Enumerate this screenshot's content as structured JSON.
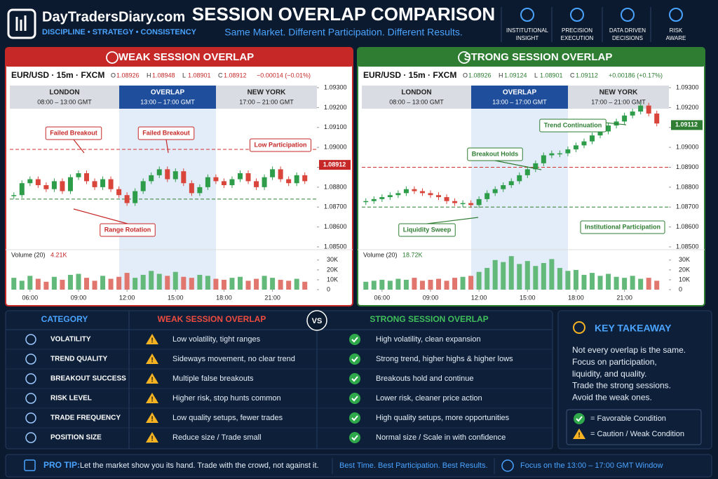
{
  "header": {
    "brand": "DayTradersDiary.com",
    "tagline": "DISCIPLINE • STRATEGY • CONSISTENCY",
    "title": "SESSION OVERLAP COMPARISON",
    "subtitle": "Same Market. Different Participation. Different Results.",
    "features": [
      [
        "INSTITUTIONAL",
        "INSIGHT"
      ],
      [
        "PRECISION",
        "EXECUTION"
      ],
      [
        "DATA DRIVEN",
        "DECISIONS"
      ],
      [
        "RISK",
        "AWARE"
      ]
    ]
  },
  "chart_data": [
    {
      "type": "candlestick",
      "title": "WEAK SESSION OVERLAP",
      "symbol": "EUR/USD · 15m · FXCM",
      "ohlc": [
        [
          "O",
          "1.08926"
        ],
        [
          "H",
          "1.08948"
        ],
        [
          "L",
          "1.08901"
        ],
        [
          "C",
          "1.08912"
        ]
      ],
      "change": "−0.00014 (−0.01%)",
      "color": "#c62828",
      "sessions": [
        [
          "LONDON",
          "08:00 – 13:00 GMT"
        ],
        [
          "OVERLAP",
          "13:00 – 17:00 GMT"
        ],
        [
          "NEW YORK",
          "17:00 – 21:00 GMT"
        ]
      ],
      "ylim": [
        1.085,
        1.093
      ],
      "yticks": [
        {
          "value": 1.085,
          "label": "1.08500"
        },
        {
          "value": 1.086,
          "label": "1.08600"
        },
        {
          "value": 1.087,
          "label": "1.08700"
        },
        {
          "value": 1.088,
          "label": "1.08800"
        },
        {
          "value": 1.089,
          "label": "1.08900"
        },
        {
          "value": 1.09,
          "label": "1.09000"
        },
        {
          "value": 1.091,
          "label": "1.09100"
        },
        {
          "value": 1.092,
          "label": "1.09200"
        },
        {
          "value": 1.093,
          "label": "1.09300"
        }
      ],
      "xlim": [
        4.75,
        23.75
      ],
      "xticks": [
        {
          "value": 6,
          "label": "06:00"
        },
        {
          "value": 9,
          "label": "09:00"
        },
        {
          "value": 12,
          "label": "12:00"
        },
        {
          "value": 15,
          "label": "15:00"
        },
        {
          "value": 18,
          "label": "18:00"
        },
        {
          "value": 21,
          "label": "21:00"
        }
      ],
      "x": [
        5,
        5.5,
        6,
        6.5,
        7,
        7.5,
        8,
        8.5,
        9,
        9.5,
        10,
        10.5,
        11,
        11.5,
        12,
        12.5,
        13,
        13.5,
        14,
        14.5,
        15,
        15.5,
        16,
        16.5,
        17,
        17.5,
        18,
        18.5,
        19,
        19.5,
        20,
        20.5,
        21,
        21.5,
        22,
        22.5,
        23
      ],
      "closes": [
        1.0876,
        1.0882,
        1.0884,
        1.0881,
        1.0879,
        1.0883,
        1.0878,
        1.0885,
        1.0887,
        1.0883,
        1.088,
        1.0884,
        1.0879,
        1.0876,
        1.0872,
        1.0878,
        1.0883,
        1.0886,
        1.0889,
        1.0884,
        1.0888,
        1.0882,
        1.0877,
        1.088,
        1.0885,
        1.0883,
        1.0881,
        1.0884,
        1.0887,
        1.0883,
        1.088,
        1.0885,
        1.0889,
        1.0884,
        1.0882,
        1.0886,
        1.0883
      ],
      "levels": [
        1.0899,
        1.0874
      ],
      "last": 1.08912,
      "annotations": [
        "Failed Breakout",
        "Failed Breakout",
        "Low Participation",
        "Range Rotation"
      ],
      "volume_label": "Volume (20)",
      "volume_total": "4.21K",
      "vlim": [
        0,
        32000
      ],
      "vticks": [
        0,
        {
          "value": 10000,
          "label": "10K"
        },
        {
          "value": 20000,
          "label": "20K"
        },
        {
          "value": 30000,
          "label": "30K"
        }
      ],
      "volumes": [
        12000,
        9000,
        14000,
        11000,
        8000,
        13000,
        10000,
        15000,
        16000,
        12000,
        9000,
        14000,
        11000,
        13000,
        17000,
        12000,
        15000,
        19000,
        16000,
        14000,
        18000,
        13000,
        12000,
        15000,
        14000,
        11000,
        10000,
        12000,
        13000,
        9000,
        11000,
        14000,
        12000,
        10000,
        9000,
        11000,
        8000
      ]
    },
    {
      "type": "candlestick",
      "title": "STRONG SESSION OVERLAP",
      "symbol": "EUR/USD · 15m · FXCM",
      "ohlc": [
        [
          "O",
          "1.08926"
        ],
        [
          "H",
          "1.09124"
        ],
        [
          "L",
          "1.08901"
        ],
        [
          "C",
          "1.09112"
        ]
      ],
      "change": "+0.00186 (+0.17%)",
      "color": "#2e7d32",
      "sessions": [
        [
          "LONDON",
          "08:00 – 13:00 GMT"
        ],
        [
          "OVERLAP",
          "13:00 – 17:00 GMT"
        ],
        [
          "NEW YORK",
          "17:00 – 21:00 GMT"
        ]
      ],
      "ylim": [
        1.085,
        1.093
      ],
      "yticks": [
        {
          "value": 1.085,
          "label": "1.08500"
        },
        {
          "value": 1.086,
          "label": "1.08600"
        },
        {
          "value": 1.087,
          "label": "1.08700"
        },
        {
          "value": 1.088,
          "label": "1.08800"
        },
        {
          "value": 1.089,
          "label": "1.08900"
        },
        {
          "value": 1.09,
          "label": "1.09000"
        },
        {
          "value": 1.091,
          "label": "1.09100"
        },
        {
          "value": 1.092,
          "label": "1.09200"
        },
        {
          "value": 1.093,
          "label": "1.09300"
        }
      ],
      "xlim": [
        4.75,
        23.75
      ],
      "xticks": [
        {
          "value": 6,
          "label": "06:00"
        },
        {
          "value": 9,
          "label": "09:00"
        },
        {
          "value": 12,
          "label": "12:00"
        },
        {
          "value": 15,
          "label": "15:00"
        },
        {
          "value": 18,
          "label": "18:00"
        },
        {
          "value": 21,
          "label": "21:00"
        }
      ],
      "x": [
        5,
        5.5,
        6,
        6.5,
        7,
        7.5,
        8,
        8.5,
        9,
        9.5,
        10,
        10.5,
        11,
        11.5,
        12,
        12.5,
        13,
        13.5,
        14,
        14.5,
        15,
        15.5,
        16,
        16.5,
        17,
        17.5,
        18,
        18.5,
        19,
        19.5,
        20,
        20.5,
        21,
        21.5,
        22,
        22.5,
        23
      ],
      "closes": [
        1.0873,
        1.0874,
        1.0875,
        1.0876,
        1.0877,
        1.0879,
        1.0878,
        1.0877,
        1.0876,
        1.0875,
        1.0873,
        1.0872,
        1.0872,
        1.0871,
        1.0874,
        1.0877,
        1.0879,
        1.0881,
        1.0883,
        1.0886,
        1.0889,
        1.0892,
        1.0896,
        1.0897,
        1.0897,
        1.0899,
        1.0901,
        1.0903,
        1.0906,
        1.0908,
        1.0911,
        1.0913,
        1.0916,
        1.0918,
        1.0921,
        1.0917,
        1.0912
      ],
      "levels": [
        1.089,
        1.087
      ],
      "last": 1.09112,
      "annotations": [
        "Trend Continuation",
        "Breakout Holds",
        "Liquidity Sweep",
        "Institutional Participation"
      ],
      "volume_label": "Volume (20)",
      "volume_total": "18.72K",
      "vlim": [
        0,
        32000
      ],
      "vticks": [
        0,
        {
          "value": 10000,
          "label": "10K"
        },
        {
          "value": 20000,
          "label": "20K"
        },
        {
          "value": 30000,
          "label": "30K"
        }
      ],
      "volumes": [
        8000,
        9000,
        10000,
        9000,
        11000,
        10000,
        12000,
        9000,
        10000,
        11000,
        9000,
        12000,
        13000,
        14000,
        18000,
        22000,
        30000,
        28000,
        34000,
        26000,
        29000,
        24000,
        27000,
        31000,
        22000,
        19000,
        20000,
        15000,
        17000,
        14000,
        16000,
        13000,
        12000,
        14000,
        11000,
        12000,
        9000
      ]
    }
  ],
  "table": {
    "headers": [
      "CATEGORY",
      "WEAK SESSION OVERLAP",
      "STRONG SESSION OVERLAP"
    ],
    "vs": "VS",
    "rows": [
      [
        "VOLATILITY",
        "Low volatility, tight ranges",
        "High volatility, clean expansion"
      ],
      [
        "TREND QUALITY",
        "Sideways movement, no clear trend",
        "Strong trend, higher highs & higher lows"
      ],
      [
        "BREAKOUT SUCCESS",
        "Multiple false breakouts",
        "Breakouts hold and continue"
      ],
      [
        "RISK LEVEL",
        "Higher risk, stop hunts common",
        "Lower risk, cleaner price action"
      ],
      [
        "TRADE FREQUENCY",
        "Low quality setups, fewer trades",
        "High quality setups, more opportunities"
      ],
      [
        "POSITION SIZE",
        "Reduce size / Trade small",
        "Normal size / Scale in with confidence"
      ]
    ]
  },
  "takeaway": {
    "title": "KEY TAKEAWAY",
    "lines": [
      "Not every overlap is the same.",
      "Focus on participation,",
      "liquidity, and quality.",
      "Trade the strong sessions.",
      "Avoid the weak ones."
    ],
    "legend": [
      "= Favorable Condition",
      "= Caution / Weak Condition"
    ]
  },
  "footer": {
    "label": "PRO TIP:",
    "text": "Let the market show you its hand. Trade with the crowd, not against it.",
    "slogan": "Best Time. Best Participation. Best Results.",
    "focus": "Focus on the 13:00 – 17:00 GMT Window"
  }
}
